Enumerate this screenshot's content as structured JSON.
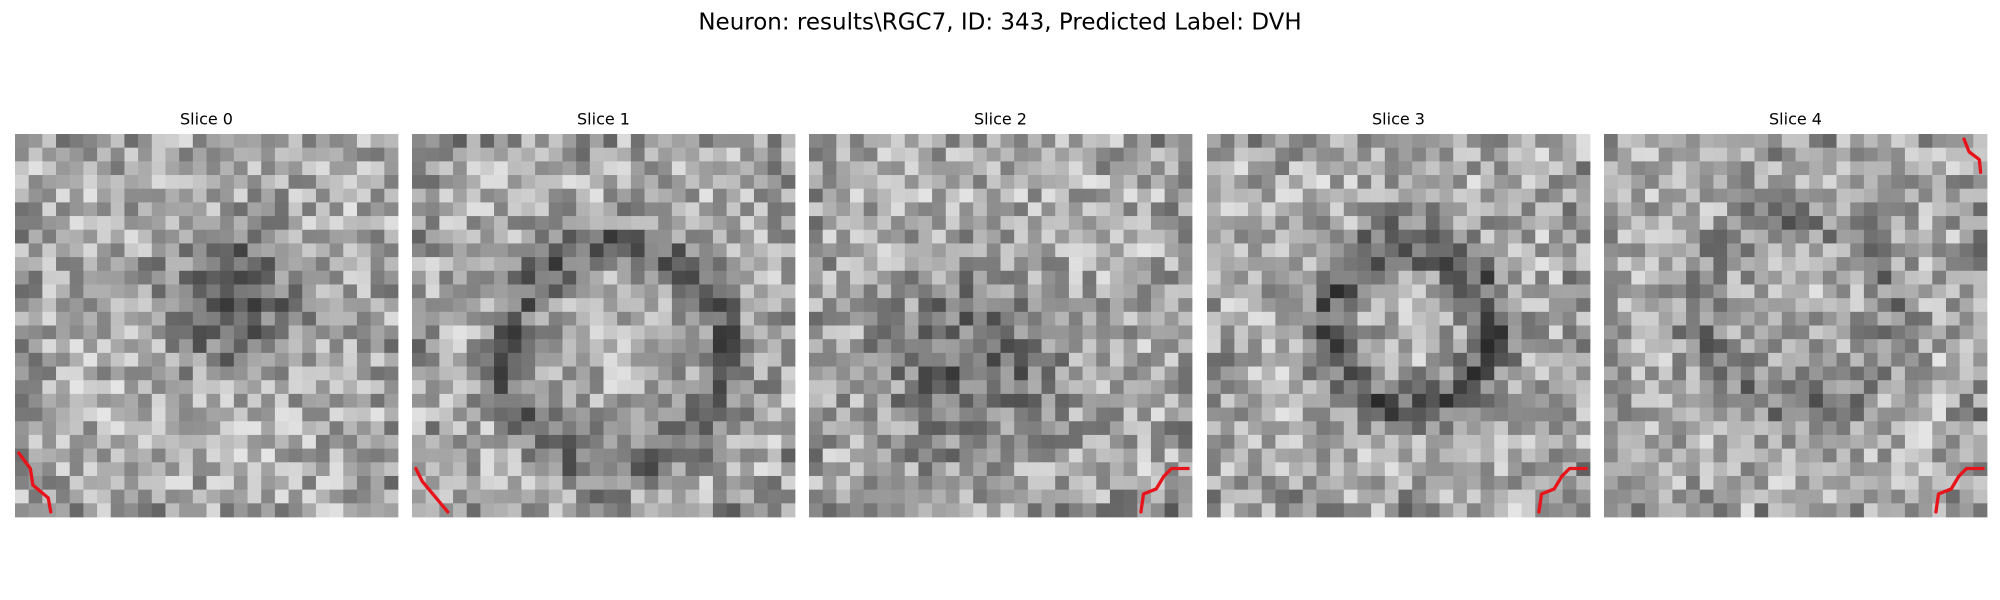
{
  "title": "Neuron: results\\RGC7, ID: 343, Predicted Label: DVH",
  "panels": [
    {
      "label": "Slice 0"
    },
    {
      "label": "Slice 1"
    },
    {
      "label": "Slice 2"
    },
    {
      "label": "Slice 3"
    },
    {
      "label": "Slice 4"
    }
  ]
}
